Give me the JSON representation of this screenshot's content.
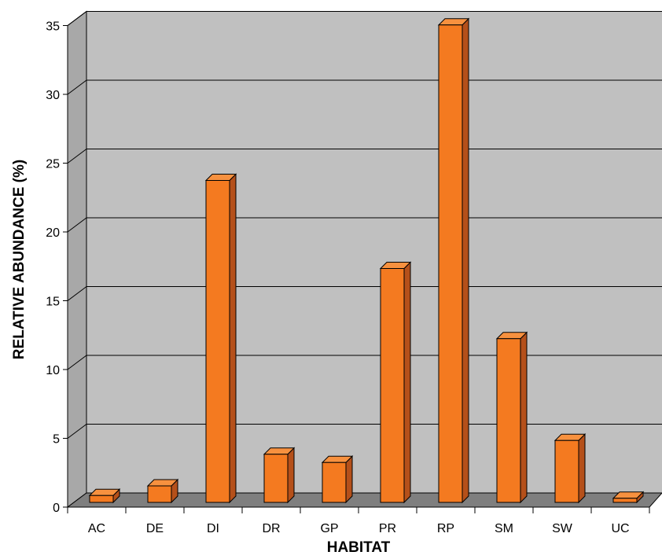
{
  "chart_data": {
    "type": "bar",
    "title": "",
    "xlabel": "HABITAT",
    "ylabel": "RELATIVE ABUNDANCE (%)",
    "categories": [
      "AC",
      "DE",
      "DI",
      "DR",
      "GP",
      "PR",
      "RP",
      "SM",
      "SW",
      "UC"
    ],
    "values": [
      0.5,
      1.2,
      23.4,
      3.5,
      2.9,
      17.0,
      34.7,
      11.9,
      4.5,
      0.3
    ],
    "ylim": [
      0,
      35
    ],
    "yticks": [
      0,
      5,
      10,
      15,
      20,
      25,
      30,
      35
    ],
    "grid": true,
    "legend": "none"
  },
  "colors": {
    "bar_front": "#f47a20",
    "bar_side": "#b5501a",
    "bar_top": "#f7913f",
    "back_wall": "#c0c0c0",
    "left_wall": "#a8a8a8",
    "floor": "#7f7f7f"
  }
}
